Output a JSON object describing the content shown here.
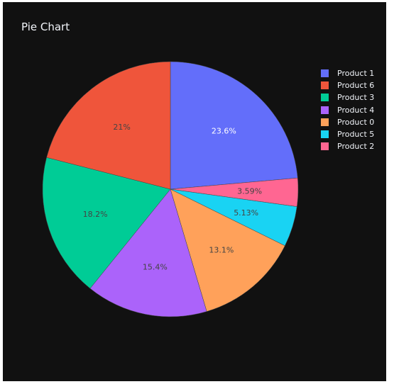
{
  "chart_data": {
    "type": "pie",
    "title": "Pie Chart",
    "slices": [
      {
        "label": "Product 1",
        "value": 23.6,
        "text": "23.6%",
        "color": "#636efa",
        "text_color": "#ffffff"
      },
      {
        "label": "Product 2",
        "value": 3.59,
        "text": "3.59%",
        "color": "#ff6692",
        "text_color": "#444444"
      },
      {
        "label": "Product 5",
        "value": 5.13,
        "text": "5.13%",
        "color": "#19d3f3",
        "text_color": "#444444"
      },
      {
        "label": "Product 0",
        "value": 13.1,
        "text": "13.1%",
        "color": "#ffa15a",
        "text_color": "#444444"
      },
      {
        "label": "Product 4",
        "value": 15.4,
        "text": "15.4%",
        "color": "#ab63fa",
        "text_color": "#444444"
      },
      {
        "label": "Product 3",
        "value": 18.2,
        "text": "18.2%",
        "color": "#00cc96",
        "text_color": "#444444"
      },
      {
        "label": "Product 6",
        "value": 21,
        "text": "21%",
        "color": "#ef553b",
        "text_color": "#444444"
      }
    ],
    "legend": [
      {
        "label": "Product 1",
        "color": "#636efa"
      },
      {
        "label": "Product 6",
        "color": "#ef553b"
      },
      {
        "label": "Product 3",
        "color": "#00cc96"
      },
      {
        "label": "Product 4",
        "color": "#ab63fa"
      },
      {
        "label": "Product 0",
        "color": "#ffa15a"
      },
      {
        "label": "Product 5",
        "color": "#19d3f3"
      },
      {
        "label": "Product 2",
        "color": "#ff6692"
      }
    ],
    "direction": "clockwise",
    "start": "top",
    "legend_position": "top-right",
    "background": "#111111"
  }
}
